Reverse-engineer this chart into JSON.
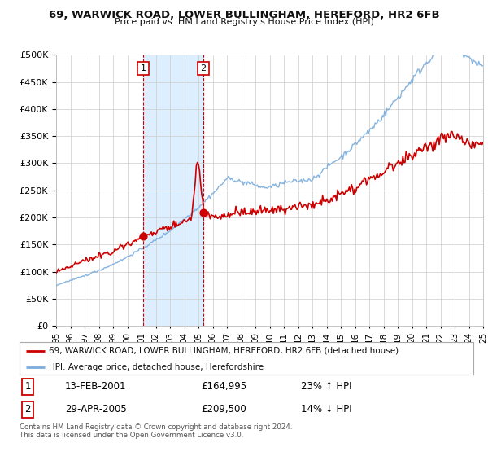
{
  "title": "69, WARWICK ROAD, LOWER BULLINGHAM, HEREFORD, HR2 6FB",
  "subtitle": "Price paid vs. HM Land Registry's House Price Index (HPI)",
  "ylim": [
    0,
    500000
  ],
  "yticks": [
    0,
    50000,
    100000,
    150000,
    200000,
    250000,
    300000,
    350000,
    400000,
    450000,
    500000
  ],
  "ytick_labels": [
    "£0",
    "£50K",
    "£100K",
    "£150K",
    "£200K",
    "£250K",
    "£300K",
    "£350K",
    "£400K",
    "£450K",
    "£500K"
  ],
  "sale1_date": 2001.12,
  "sale1_price": 164995,
  "sale2_date": 2005.33,
  "sale2_price": 209500,
  "sale1_date_str": "13-FEB-2001",
  "sale1_price_str": "£164,995",
  "sale1_hpi_str": "23% ↑ HPI",
  "sale2_date_str": "29-APR-2005",
  "sale2_price_str": "£209,500",
  "sale2_hpi_str": "14% ↓ HPI",
  "legend_property": "69, WARWICK ROAD, LOWER BULLINGHAM, HEREFORD, HR2 6FB (detached house)",
  "legend_hpi": "HPI: Average price, detached house, Herefordshire",
  "footer": "Contains HM Land Registry data © Crown copyright and database right 2024.\nThis data is licensed under the Open Government Licence v3.0.",
  "red_color": "#cc0000",
  "blue_color": "#7aacdc",
  "shaded_color": "#ddeeff",
  "background_color": "#ffffff",
  "grid_color": "#cccccc"
}
